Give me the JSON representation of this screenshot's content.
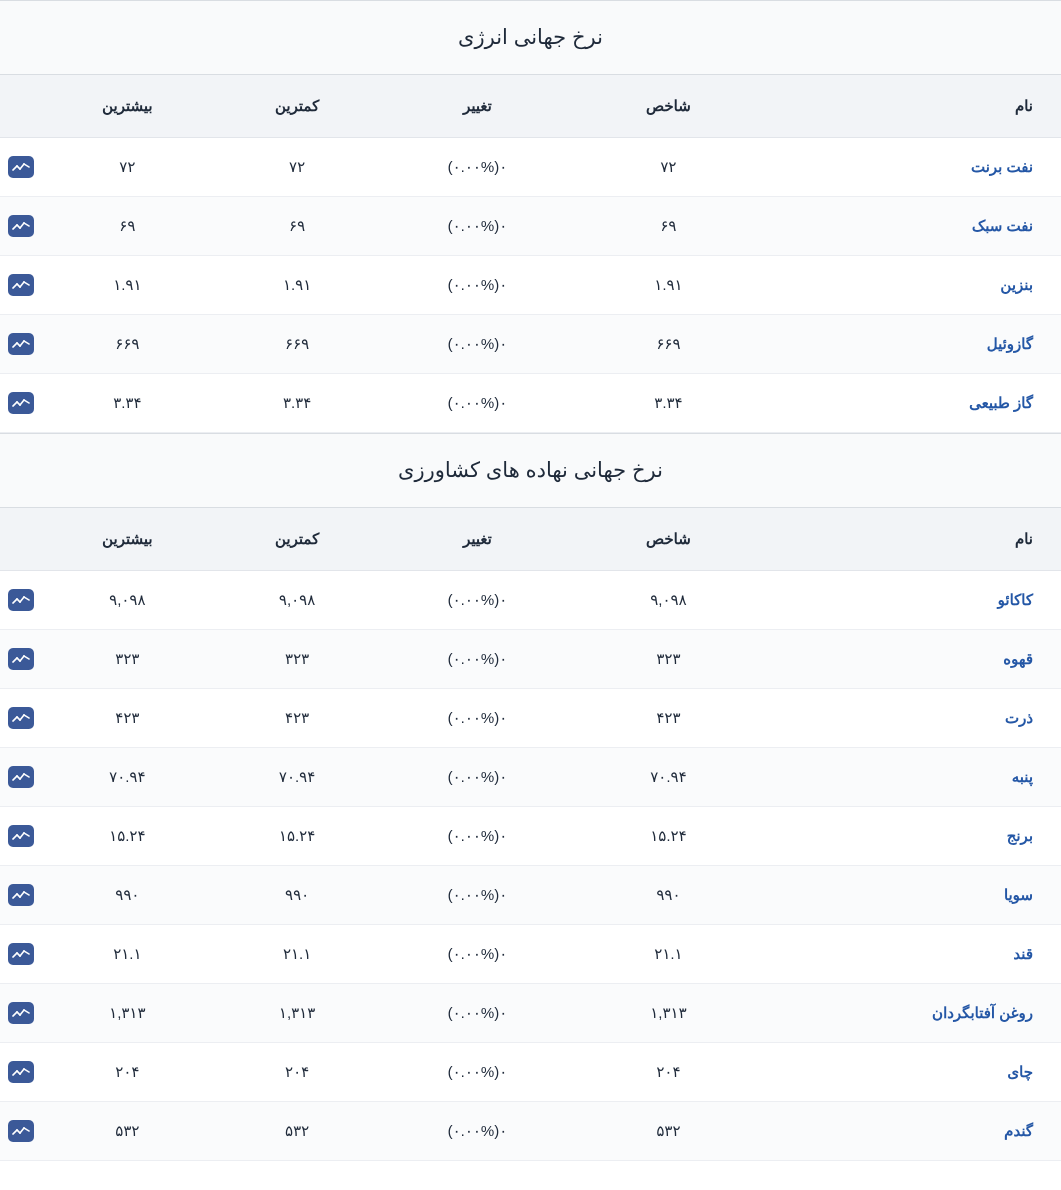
{
  "colors": {
    "title_bg": "#f9fafb",
    "header_bg": "#f2f4f7",
    "row_border": "#eceef2",
    "section_border": "#d9dde2",
    "text": "#1f2a3a",
    "link": "#2457a6",
    "icon_bg": "#3b5998",
    "icon_stroke": "#ffffff",
    "row_alt_bg": "#fafbfc"
  },
  "typography": {
    "title_fontsize": 21,
    "header_fontsize": 15,
    "cell_fontsize": 15,
    "name_fontweight": "bold"
  },
  "columns": {
    "name": "نام",
    "index": "شاخص",
    "change": "تغییر",
    "low": "کمترین",
    "high": "بیشترین"
  },
  "sections": [
    {
      "title": "نرخ جهانی انرژی",
      "rows": [
        {
          "name": "نفت برنت",
          "index": "۷۲",
          "change": "(۰.۰۰%)۰",
          "low": "۷۲",
          "high": "۷۲"
        },
        {
          "name": "نفت سبک",
          "index": "۶۹",
          "change": "(۰.۰۰%)۰",
          "low": "۶۹",
          "high": "۶۹"
        },
        {
          "name": "بنزین",
          "index": "۱.۹۱",
          "change": "(۰.۰۰%)۰",
          "low": "۱.۹۱",
          "high": "۱.۹۱"
        },
        {
          "name": "گازوئیل",
          "index": "۶۶۹",
          "change": "(۰.۰۰%)۰",
          "low": "۶۶۹",
          "high": "۶۶۹"
        },
        {
          "name": "گاز طبیعی",
          "index": "۳.۳۴",
          "change": "(۰.۰۰%)۰",
          "low": "۳.۳۴",
          "high": "۳.۳۴"
        }
      ]
    },
    {
      "title": "نرخ جهانی نهاده های کشاورزی",
      "rows": [
        {
          "name": "کاکائو",
          "index": "۹,۰۹۸",
          "change": "(۰.۰۰%)۰",
          "low": "۹,۰۹۸",
          "high": "۹,۰۹۸"
        },
        {
          "name": "قهوه",
          "index": "۳۲۳",
          "change": "(۰.۰۰%)۰",
          "low": "۳۲۳",
          "high": "۳۲۳"
        },
        {
          "name": "ذرت",
          "index": "۴۲۳",
          "change": "(۰.۰۰%)۰",
          "low": "۴۲۳",
          "high": "۴۲۳"
        },
        {
          "name": "پنبه",
          "index": "۷۰.۹۴",
          "change": "(۰.۰۰%)۰",
          "low": "۷۰.۹۴",
          "high": "۷۰.۹۴"
        },
        {
          "name": "برنج",
          "index": "۱۵.۲۴",
          "change": "(۰.۰۰%)۰",
          "low": "۱۵.۲۴",
          "high": "۱۵.۲۴"
        },
        {
          "name": "سویا",
          "index": "۹۹۰",
          "change": "(۰.۰۰%)۰",
          "low": "۹۹۰",
          "high": "۹۹۰"
        },
        {
          "name": "قند",
          "index": "۲۱.۱",
          "change": "(۰.۰۰%)۰",
          "low": "۲۱.۱",
          "high": "۲۱.۱"
        },
        {
          "name": "روغن آفتابگردان",
          "index": "۱,۳۱۳",
          "change": "(۰.۰۰%)۰",
          "low": "۱,۳۱۳",
          "high": "۱,۳۱۳"
        },
        {
          "name": "چای",
          "index": "۲۰۴",
          "change": "(۰.۰۰%)۰",
          "low": "۲۰۴",
          "high": "۲۰۴"
        },
        {
          "name": "گندم",
          "index": "۵۳۲",
          "change": "(۰.۰۰%)۰",
          "low": "۵۳۲",
          "high": "۵۳۲"
        }
      ]
    }
  ]
}
